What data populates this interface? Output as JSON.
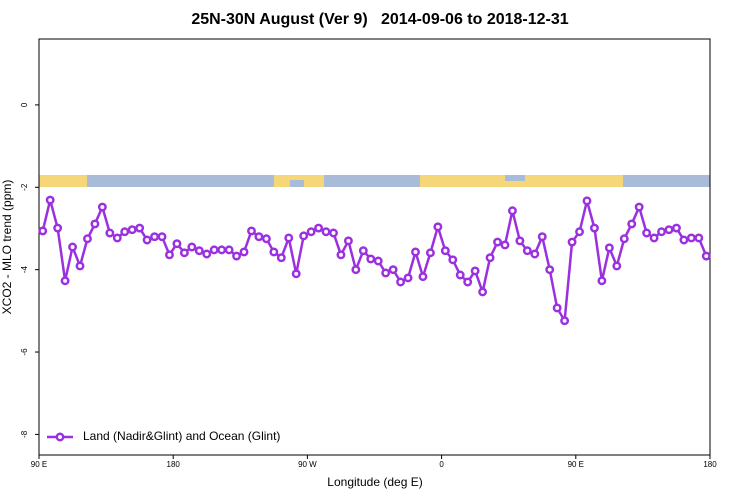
{
  "chart_data": {
    "type": "line",
    "title": "25N-30N August (Ver 9)   2014-09-06 to 2018-12-31",
    "xlabel": "Longitude (deg E)",
    "ylabel": "XCO2 - MLO trend (ppm)",
    "xlim": [
      90,
      540
    ],
    "ylim": [
      -8.5,
      1.6
    ],
    "xticks": [
      {
        "value": 90,
        "label": "90 E"
      },
      180,
      {
        "value": 270,
        "label": "90 W"
      },
      {
        "value": 360,
        "label": "0"
      },
      {
        "value": 450,
        "label": "90 E"
      },
      {
        "value": 540,
        "label": "180"
      }
    ],
    "yticks": [
      0,
      -2,
      -4,
      -6,
      -8
    ],
    "legend_position": "bottom-left",
    "x": [
      92.5,
      97.5,
      102.5,
      107.5,
      112.5,
      117.5,
      122.5,
      127.5,
      132.5,
      137.5,
      142.5,
      147.5,
      152.5,
      157.5,
      162.5,
      167.5,
      172.5,
      177.5,
      182.5,
      187.5,
      192.5,
      197.5,
      202.5,
      207.5,
      212.5,
      217.5,
      222.5,
      227.5,
      232.5,
      237.5,
      242.5,
      247.5,
      252.5,
      257.5,
      262.5,
      267.5,
      272.5,
      277.5,
      282.5,
      287.5,
      292.5,
      297.5,
      302.5,
      307.5,
      312.5,
      317.5,
      322.5,
      327.5,
      332.5,
      337.5,
      342.5,
      347.5,
      352.5,
      357.5,
      362.5,
      367.5,
      372.5,
      377.5,
      382.5,
      387.5,
      392.5,
      397.5,
      402.5,
      407.5,
      412.5,
      417.5,
      422.5,
      427.5,
      432.5,
      437.5,
      442.5,
      447.5,
      452.5,
      457.5,
      462.5,
      467.5,
      472.5,
      477.5,
      482.5,
      487.5,
      492.5,
      497.5,
      502.5,
      507.5,
      512.5,
      517.5,
      522.5,
      527.5,
      532.5,
      537.5
    ],
    "series": [
      {
        "name": "Land (Nadir&Glint) and Ocean (Glint)",
        "color": "#9b30e0",
        "values": [
          -3.06,
          -2.31,
          -2.99,
          -4.27,
          -3.45,
          -3.91,
          -3.25,
          -2.89,
          -2.48,
          -3.11,
          -3.23,
          -3.08,
          -3.03,
          -2.99,
          -3.28,
          -3.2,
          -3.2,
          -3.64,
          -3.37,
          -3.59,
          -3.45,
          -3.54,
          -3.62,
          -3.52,
          -3.52,
          -3.52,
          -3.67,
          -3.57,
          -3.06,
          -3.2,
          -3.25,
          -3.57,
          -3.71,
          -3.23,
          -4.1,
          -3.18,
          -3.08,
          -2.99,
          -3.08,
          -3.11,
          -3.64,
          -3.3,
          -4.0,
          -3.54,
          -3.74,
          -3.79,
          -4.08,
          -4.0,
          -4.3,
          -4.2,
          -3.57,
          -4.17,
          -3.59,
          -2.96,
          -3.54,
          -3.76,
          -4.13,
          -4.3,
          -4.03,
          -4.54,
          -3.71,
          -3.33,
          -3.4,
          -2.57,
          -3.3,
          -3.54,
          -3.62,
          -3.2,
          -4.0,
          -4.93,
          -5.24,
          -3.33,
          -3.08,
          -2.33,
          -2.99,
          -4.27,
          -3.47,
          -3.91,
          -3.25,
          -2.89,
          -2.48,
          -3.11,
          -3.23,
          -3.08,
          -3.03,
          -2.99,
          -3.28,
          -3.23,
          -3.23,
          -3.67
        ]
      }
    ]
  }
}
